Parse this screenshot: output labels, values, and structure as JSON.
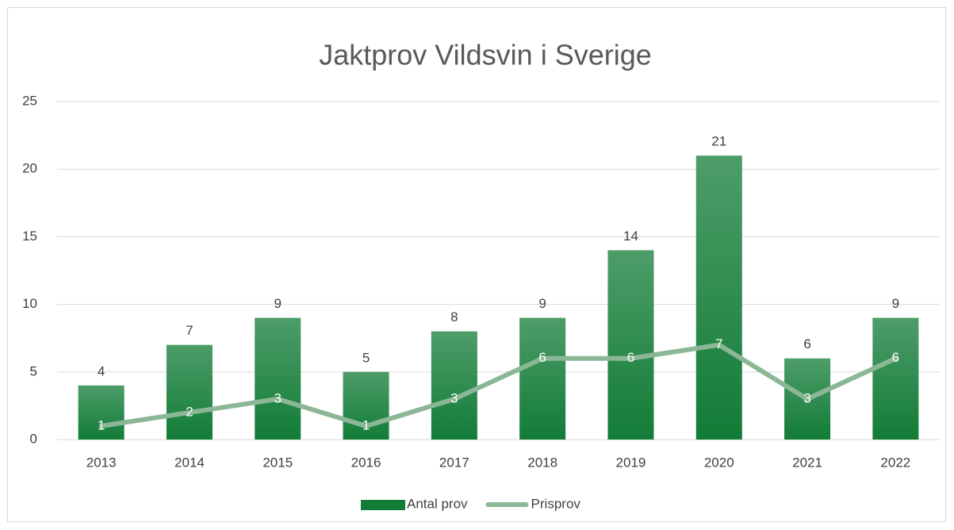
{
  "chart_data": {
    "type": "bar",
    "title": "Jaktprov Vildsvin i Sverige",
    "categories": [
      "2013",
      "2014",
      "2015",
      "2016",
      "2017",
      "2018",
      "2019",
      "2020",
      "2021",
      "2022"
    ],
    "series": [
      {
        "name": "Antal prov",
        "type": "bar",
        "color": "#127c37",
        "values": [
          4,
          7,
          9,
          5,
          8,
          9,
          14,
          21,
          6,
          9
        ]
      },
      {
        "name": "Prisprov",
        "type": "line",
        "color": "#8cb797",
        "values": [
          1,
          2,
          3,
          1,
          3,
          6,
          6,
          7,
          3,
          6
        ]
      }
    ],
    "ylim": [
      0,
      25
    ],
    "yticks": [
      0,
      5,
      10,
      15,
      20,
      25
    ],
    "grid": true,
    "legend": "bottom"
  }
}
